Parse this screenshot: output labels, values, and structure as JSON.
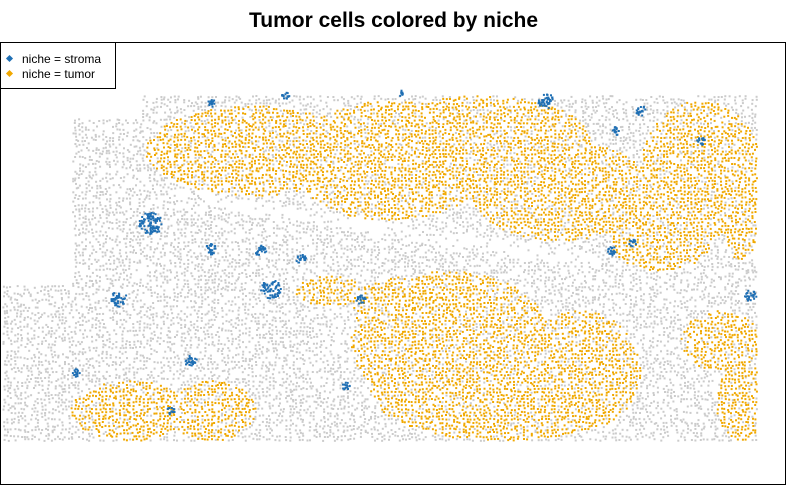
{
  "chart_data": {
    "type": "scatter",
    "title": "Tumor cells colored by niche",
    "xlabel": "",
    "ylabel": "",
    "grid": false,
    "axes_shown": false,
    "legend_position": "top-left",
    "series": [
      {
        "name": "niche = stroma",
        "color": "#1F6FB4"
      },
      {
        "name": "niche = tumor",
        "color": "#F0A800"
      }
    ],
    "background_cells_color": "#CBCBCB"
  }
}
